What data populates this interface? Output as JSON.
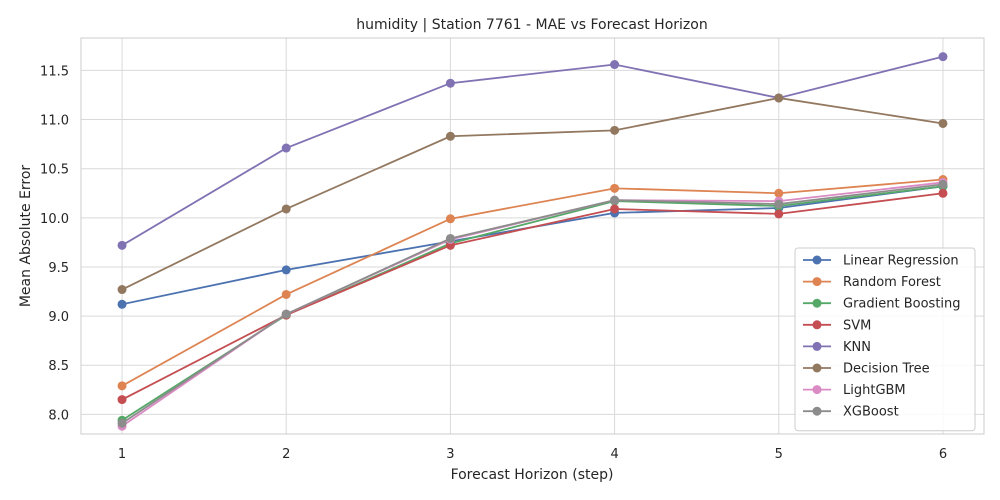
{
  "chart_data": {
    "type": "line",
    "title": "humidity | Station 7761 - MAE vs Forecast Horizon",
    "xlabel": "Forecast Horizon (step)",
    "ylabel": "Mean Absolute Error",
    "x": [
      1,
      2,
      3,
      4,
      5,
      6
    ],
    "xlim": [
      0.75,
      6.25
    ],
    "ylim": [
      7.8,
      11.83
    ],
    "xticks": [
      1,
      2,
      3,
      4,
      5,
      6
    ],
    "yticks": [
      8.0,
      8.5,
      9.0,
      9.5,
      10.0,
      10.5,
      11.0,
      11.5
    ],
    "grid": true,
    "legend_position": "lower-right",
    "series": [
      {
        "name": "Linear Regression",
        "color": "#4c72b0",
        "values": [
          9.12,
          9.47,
          9.76,
          10.05,
          10.1,
          10.32
        ]
      },
      {
        "name": "Random Forest",
        "color": "#dd8452",
        "values": [
          8.29,
          9.22,
          9.99,
          10.3,
          10.25,
          10.39
        ]
      },
      {
        "name": "Gradient Boosting",
        "color": "#55a868",
        "values": [
          7.94,
          9.01,
          9.74,
          10.17,
          10.12,
          10.32
        ]
      },
      {
        "name": "SVM",
        "color": "#c44e52",
        "values": [
          8.15,
          9.01,
          9.72,
          10.09,
          10.04,
          10.25
        ]
      },
      {
        "name": "KNN",
        "color": "#8172b3",
        "values": [
          9.72,
          10.71,
          11.37,
          11.56,
          11.22,
          11.64
        ]
      },
      {
        "name": "Decision Tree",
        "color": "#937860",
        "values": [
          9.27,
          10.09,
          10.83,
          10.89,
          11.22,
          10.96
        ]
      },
      {
        "name": "LightGBM",
        "color": "#da8bc3",
        "values": [
          7.88,
          9.02,
          9.78,
          10.18,
          10.17,
          10.36
        ]
      },
      {
        "name": "XGBoost",
        "color": "#8c8c8c",
        "values": [
          7.91,
          9.02,
          9.79,
          10.18,
          10.14,
          10.34
        ]
      }
    ]
  }
}
